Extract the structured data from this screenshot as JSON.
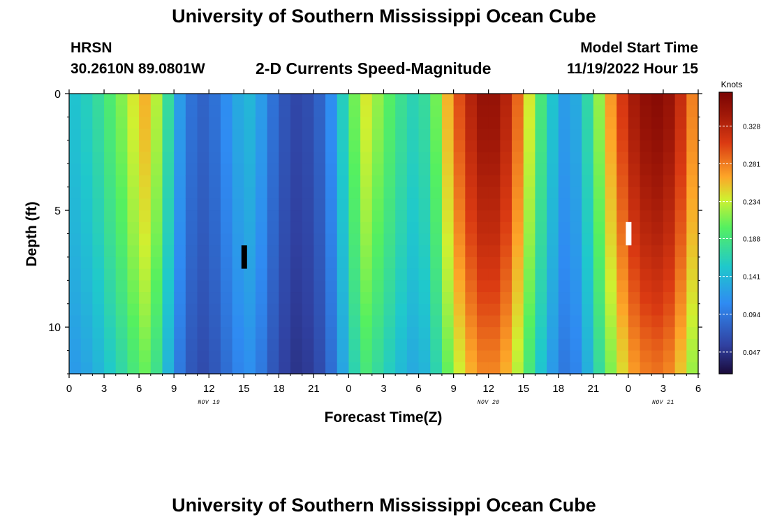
{
  "header": {
    "title": "University of Southern Mississippi Ocean Cube",
    "station": "HRSN",
    "coords": "30.2610N  89.0801W",
    "subtitle": "2-D Currents Speed-Magnitude",
    "model_label": "Model Start Time",
    "model_time": "11/19/2022 Hour 15"
  },
  "footer": {
    "title": "University of Southern Mississippi Ocean Cube"
  },
  "chart_data": {
    "type": "heatmap",
    "xlabel": "Forecast Time(Z)",
    "ylabel": "Depth (ft)",
    "x_tick_labels": [
      "0",
      "3",
      "6",
      "9",
      "12",
      "15",
      "18",
      "21",
      "0",
      "3",
      "6",
      "9",
      "12",
      "15",
      "18",
      "21",
      "0",
      "3",
      "6"
    ],
    "date_labels": [
      {
        "label": "NOV 19",
        "at_hour": 12
      },
      {
        "label": "NOV 20",
        "at_hour": 36
      },
      {
        "label": "NOV 21",
        "at_hour": 51
      }
    ],
    "y_ticks": [
      0,
      5,
      10
    ],
    "ylim": [
      12,
      0
    ],
    "xlim_hours": [
      0,
      54
    ],
    "colorbar": {
      "title": "Knots",
      "ticks": [
        "0.328",
        "0.281",
        "0.234",
        "0.188",
        "0.141",
        "0.094",
        "0.047"
      ],
      "range": [
        0.02,
        0.37
      ]
    },
    "time_hours": [
      0,
      1,
      2,
      3,
      4,
      5,
      6,
      7,
      8,
      9,
      10,
      11,
      12,
      13,
      14,
      15,
      16,
      17,
      18,
      19,
      20,
      21,
      22,
      23,
      24,
      25,
      26,
      27,
      28,
      29,
      30,
      31,
      32,
      33,
      34,
      35,
      36,
      37,
      38,
      39,
      40,
      41,
      42,
      43,
      44,
      45,
      46,
      47,
      48,
      49,
      50,
      51,
      52,
      53
    ],
    "surface_speed_knots": [
      0.15,
      0.16,
      0.175,
      0.195,
      0.215,
      0.24,
      0.26,
      0.23,
      0.175,
      0.12,
      0.09,
      0.08,
      0.09,
      0.11,
      0.13,
      0.14,
      0.12,
      0.09,
      0.07,
      0.06,
      0.065,
      0.08,
      0.11,
      0.16,
      0.21,
      0.24,
      0.22,
      0.2,
      0.18,
      0.165,
      0.175,
      0.21,
      0.26,
      0.3,
      0.33,
      0.35,
      0.35,
      0.33,
      0.29,
      0.24,
      0.19,
      0.15,
      0.12,
      0.13,
      0.17,
      0.22,
      0.27,
      0.31,
      0.34,
      0.355,
      0.36,
      0.35,
      0.32,
      0.28
    ],
    "depth_profile_ft": [
      0,
      1,
      2,
      3,
      4,
      5,
      6,
      7,
      8,
      9,
      10,
      11,
      12
    ],
    "depth_factor": [
      1.0,
      0.99,
      0.98,
      0.965,
      0.95,
      0.935,
      0.92,
      0.9,
      0.88,
      0.86,
      0.835,
      0.81,
      0.79
    ],
    "markers": [
      {
        "hour": 15,
        "depth_ft": 7,
        "color": "#000000"
      },
      {
        "hour": 48,
        "depth_ft": 6,
        "color": "#ffffff"
      }
    ]
  }
}
